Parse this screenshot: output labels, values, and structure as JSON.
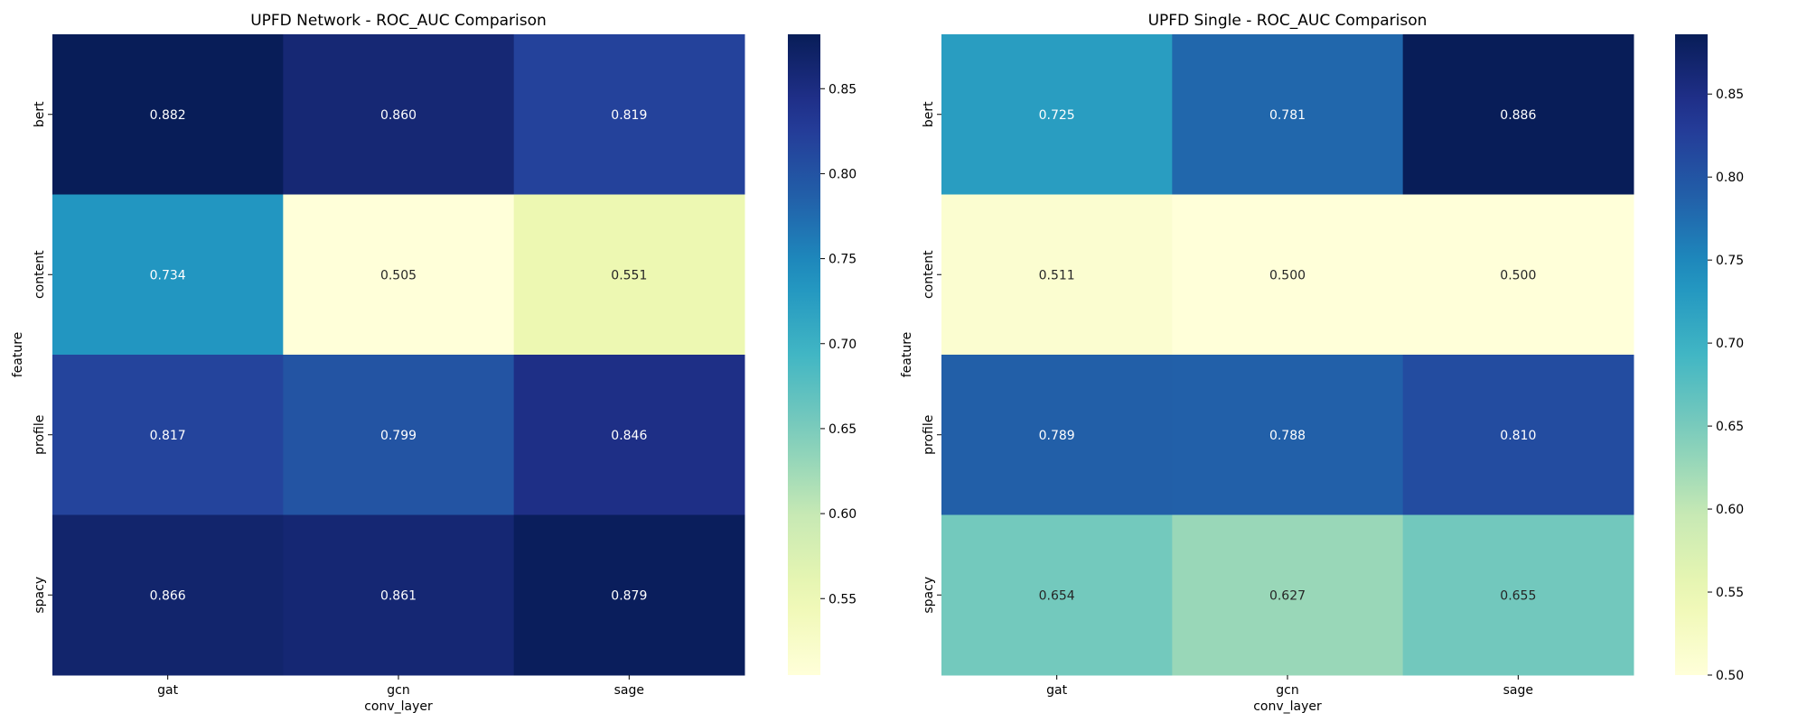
{
  "chart_data": [
    {
      "type": "heatmap",
      "title": "UPFD Network - ROC_AUC Comparison",
      "xlabel": "conv_layer",
      "ylabel": "feature",
      "x_categories": [
        "gat",
        "gcn",
        "sage"
      ],
      "y_categories": [
        "bert",
        "content",
        "profile",
        "spacy"
      ],
      "values": [
        [
          0.882,
          0.86,
          0.819
        ],
        [
          0.734,
          0.505,
          0.551
        ],
        [
          0.817,
          0.799,
          0.846
        ],
        [
          0.866,
          0.861,
          0.879
        ]
      ],
      "annotations": [
        [
          "0.882",
          "0.860",
          "0.819"
        ],
        [
          "0.734",
          "0.505",
          "0.551"
        ],
        [
          "0.817",
          "0.799",
          "0.846"
        ],
        [
          "0.866",
          "0.861",
          "0.879"
        ]
      ],
      "colormap": "YlGnBu",
      "vmin": 0.505,
      "vmax": 0.882,
      "colorbar_ticks": [
        "0.55",
        "0.60",
        "0.65",
        "0.70",
        "0.75",
        "0.80",
        "0.85"
      ]
    },
    {
      "type": "heatmap",
      "title": "UPFD Single - ROC_AUC Comparison",
      "xlabel": "conv_layer",
      "ylabel": "feature",
      "x_categories": [
        "gat",
        "gcn",
        "sage"
      ],
      "y_categories": [
        "bert",
        "content",
        "profile",
        "spacy"
      ],
      "values": [
        [
          0.725,
          0.781,
          0.886
        ],
        [
          0.511,
          0.5,
          0.5
        ],
        [
          0.789,
          0.788,
          0.81
        ],
        [
          0.654,
          0.627,
          0.655
        ]
      ],
      "annotations": [
        [
          "0.725",
          "0.781",
          "0.886"
        ],
        [
          "0.511",
          "0.500",
          "0.500"
        ],
        [
          "0.789",
          "0.788",
          "0.810"
        ],
        [
          "0.654",
          "0.627",
          "0.655"
        ]
      ],
      "colormap": "YlGnBu",
      "vmin": 0.5,
      "vmax": 0.886,
      "colorbar_ticks": [
        "0.50",
        "0.55",
        "0.60",
        "0.65",
        "0.70",
        "0.75",
        "0.80",
        "0.85"
      ]
    }
  ]
}
